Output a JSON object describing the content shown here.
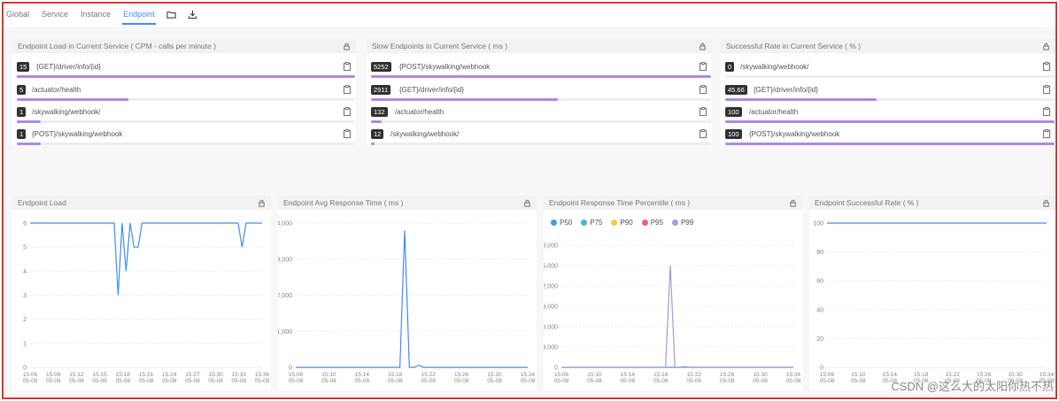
{
  "nav": {
    "tabs": [
      "Global",
      "Service",
      "Instance",
      "Endpoint"
    ],
    "active_tab": "Endpoint",
    "icons": [
      "folder-icon",
      "download-icon"
    ]
  },
  "top_cards": [
    {
      "title": "Endpoint Load in Current Service ( CPM - calls per minute )",
      "items": [
        {
          "value": "15",
          "label": "{GET}/driver/info/{id}",
          "fill": 1.0
        },
        {
          "value": "5",
          "label": "/actuator/health",
          "fill": 0.33
        },
        {
          "value": "1",
          "label": "/skywalking/webhook/",
          "fill": 0.07
        },
        {
          "value": "1",
          "label": "{POST}/skywalking/webhook",
          "fill": 0.07
        }
      ]
    },
    {
      "title": "Slow Endpoints in Current Service ( ms )",
      "items": [
        {
          "value": "5252",
          "label": "{POST}/skywalking/webhook",
          "fill": 1.0
        },
        {
          "value": "2911",
          "label": "{GET}/driver/info/{id}",
          "fill": 0.55
        },
        {
          "value": "132",
          "label": "/actuator/health",
          "fill": 0.03
        },
        {
          "value": "12",
          "label": "/skywalking/webhook/",
          "fill": 0.01
        }
      ]
    },
    {
      "title": "Successful Rate in Current Service ( % )",
      "items": [
        {
          "value": "0",
          "label": "/skywalking/webhook/",
          "fill": 0.0
        },
        {
          "value": "45.66",
          "label": "{GET}/driver/info/{id}",
          "fill": 0.46
        },
        {
          "value": "100",
          "label": "/actuator/health",
          "fill": 1.0
        },
        {
          "value": "100",
          "label": "{POST}/skywalking/webhook",
          "fill": 1.0
        }
      ]
    }
  ],
  "chart_data": [
    {
      "type": "line",
      "title": "Endpoint Load",
      "ylim": [
        0,
        6
      ],
      "yticks": [
        "0",
        "1",
        "2",
        "3",
        "4",
        "5",
        "6"
      ],
      "xticks": [
        "15:06",
        "15:09",
        "15:12",
        "15:15",
        "15:18",
        "15:21",
        "15:24",
        "15:27",
        "15:30",
        "15:33",
        "15:36"
      ],
      "xsub": "05-08",
      "color": "#448dfe",
      "series": [
        {
          "values": [
            6,
            6,
            6,
            6,
            6,
            6,
            6,
            6,
            6,
            6,
            6,
            6,
            6,
            6,
            6,
            6,
            6,
            6,
            6,
            6,
            6,
            6,
            3,
            6,
            4,
            6,
            5,
            5,
            6,
            6,
            6,
            6,
            6,
            6,
            6,
            6,
            6,
            6,
            6,
            6,
            6,
            6,
            6,
            6,
            6,
            6,
            6,
            6,
            6,
            6,
            6,
            6,
            6,
            5,
            6,
            6,
            6,
            6,
            6
          ]
        }
      ]
    },
    {
      "type": "line",
      "title": "Endpoint Avg Response Time ( ms )",
      "ylim": [
        0,
        4000
      ],
      "yticks": [
        "0",
        "1,000",
        "2,000",
        "3,000",
        "4,000"
      ],
      "xticks": [
        "15:06",
        "15:10",
        "15:14",
        "15:18",
        "15:22",
        "15:26",
        "15:30",
        "15:34"
      ],
      "xsub": "05-08",
      "color": "#448dfe",
      "series": [
        {
          "values": [
            0,
            0,
            0,
            0,
            0,
            0,
            0,
            0,
            0,
            0,
            0,
            0,
            0,
            0,
            0,
            0,
            0,
            0,
            0,
            0,
            0,
            0,
            0,
            3800,
            0,
            0,
            60,
            0,
            0,
            0,
            0,
            0,
            0,
            0,
            0,
            0,
            0,
            0,
            0,
            0,
            0,
            0,
            0,
            0,
            0,
            0,
            0,
            0,
            0,
            0
          ]
        }
      ]
    },
    {
      "type": "line",
      "title": "Endpoint Response Time Percentile ( ms )",
      "ylim": [
        0,
        18000
      ],
      "yticks": [
        "0",
        "3,000",
        "6,000",
        "9,000",
        "12,000",
        "15,000",
        "18,000"
      ],
      "xticks": [
        "15:06",
        "15:10",
        "15:14",
        "15:18",
        "15:22",
        "15:26",
        "15:30",
        "15:34"
      ],
      "xsub": "05-08",
      "legend": [
        {
          "name": "P50",
          "color": "#3e9ee0"
        },
        {
          "name": "P75",
          "color": "#3fc1c9"
        },
        {
          "name": "P90",
          "color": "#f7c948"
        },
        {
          "name": "P95",
          "color": "#ef5f7a"
        },
        {
          "name": "P99",
          "color": "#a89bdc"
        }
      ],
      "series": [
        {
          "name": "P50",
          "values": [
            0,
            0,
            0,
            0,
            0,
            0,
            0,
            0,
            0,
            0,
            0,
            0,
            0,
            0,
            0,
            0,
            0,
            0,
            0,
            0,
            0,
            0,
            0,
            0,
            0,
            0,
            100,
            0,
            0,
            0,
            0,
            0,
            0,
            0,
            0,
            0,
            0,
            0,
            0,
            0,
            0,
            0,
            0,
            0,
            0,
            0,
            0,
            0,
            0,
            0
          ]
        },
        {
          "name": "P99",
          "values": [
            0,
            0,
            0,
            0,
            0,
            0,
            0,
            0,
            0,
            0,
            0,
            0,
            0,
            0,
            0,
            0,
            0,
            0,
            0,
            0,
            0,
            0,
            0,
            15000,
            0,
            0,
            0,
            0,
            0,
            0,
            0,
            0,
            0,
            0,
            0,
            0,
            0,
            0,
            0,
            0,
            0,
            0,
            0,
            0,
            0,
            0,
            0,
            0,
            0,
            0
          ]
        }
      ]
    },
    {
      "type": "line",
      "title": "Endpoint Successful Rate ( % )",
      "ylim": [
        0,
        100
      ],
      "yticks": [
        "0",
        "20",
        "40",
        "60",
        "80",
        "100"
      ],
      "xticks": [
        "15:06",
        "15:10",
        "15:14",
        "15:18",
        "15:22",
        "15:26",
        "15:30",
        "15:34"
      ],
      "xsub": "05-08",
      "color": "#448dfe",
      "series": [
        {
          "values": [
            100,
            100,
            100,
            100,
            100,
            100,
            100,
            100,
            100,
            100,
            100,
            100,
            100,
            100,
            100,
            100,
            100,
            100,
            100,
            100,
            100,
            100,
            100,
            100,
            100,
            100,
            100,
            100,
            100,
            100
          ]
        }
      ]
    }
  ],
  "watermark": "CSDN @这么大的太阳你热不热"
}
